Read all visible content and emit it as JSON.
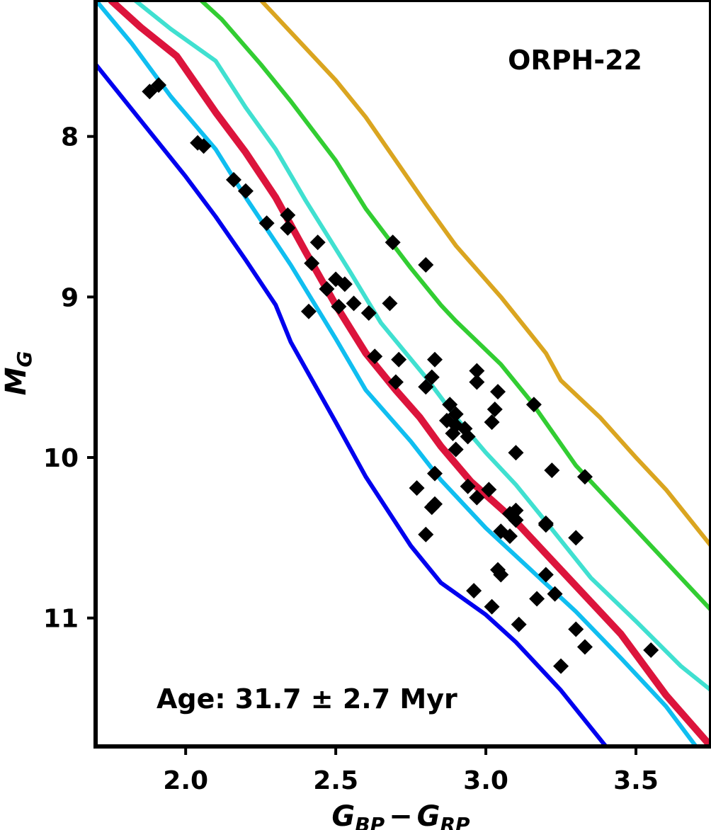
{
  "chart_data": {
    "type": "scatter",
    "title": "",
    "xlabel": {
      "main": "G",
      "sub": "BP",
      "minus": "−",
      "main2": "G",
      "sub2": "RP"
    },
    "ylabel": {
      "main": "M",
      "sub": "G"
    },
    "xlim": [
      1.7,
      3.75
    ],
    "ylim": [
      11.8,
      7.15
    ],
    "y_inverted": true,
    "xticks": [
      2.0,
      2.5,
      3.0,
      3.5
    ],
    "xtick_labels": [
      "2.0",
      "2.5",
      "3.0",
      "3.5"
    ],
    "yticks": [
      8,
      9,
      10,
      11
    ],
    "ytick_labels": [
      "8",
      "9",
      "10",
      "11"
    ],
    "annotations": {
      "cluster_name": "ORPH-22",
      "age_text": "Age: 31.7 ± 2.7 Myr"
    },
    "series": [
      {
        "name": "isochrone-blue",
        "type": "line",
        "color": "#0000ee",
        "width": 6,
        "points": [
          [
            1.7,
            7.55
          ],
          [
            1.85,
            7.9
          ],
          [
            2.0,
            8.25
          ],
          [
            2.1,
            8.5
          ],
          [
            2.2,
            8.77
          ],
          [
            2.3,
            9.05
          ],
          [
            2.35,
            9.28
          ],
          [
            2.5,
            9.78
          ],
          [
            2.6,
            10.12
          ],
          [
            2.75,
            10.55
          ],
          [
            2.85,
            10.78
          ],
          [
            3.0,
            10.98
          ],
          [
            3.1,
            11.15
          ],
          [
            3.25,
            11.45
          ],
          [
            3.4,
            11.8
          ]
        ]
      },
      {
        "name": "isochrone-deepskyblue",
        "type": "line",
        "color": "#10bef0",
        "width": 6,
        "points": [
          [
            1.7,
            7.15
          ],
          [
            1.82,
            7.42
          ],
          [
            1.95,
            7.75
          ],
          [
            2.1,
            8.08
          ],
          [
            2.2,
            8.38
          ],
          [
            2.35,
            8.8
          ],
          [
            2.5,
            9.26
          ],
          [
            2.6,
            9.58
          ],
          [
            2.75,
            9.9
          ],
          [
            2.85,
            10.14
          ],
          [
            3.0,
            10.44
          ],
          [
            3.15,
            10.7
          ],
          [
            3.3,
            10.96
          ],
          [
            3.45,
            11.25
          ],
          [
            3.6,
            11.55
          ],
          [
            3.7,
            11.8
          ]
        ]
      },
      {
        "name": "isochrone-crimson",
        "type": "line",
        "color": "#dc143c",
        "width": 10,
        "points": [
          [
            1.75,
            7.15
          ],
          [
            1.85,
            7.32
          ],
          [
            1.97,
            7.5
          ],
          [
            2.1,
            7.85
          ],
          [
            2.2,
            8.1
          ],
          [
            2.3,
            8.38
          ],
          [
            2.4,
            8.72
          ],
          [
            2.5,
            9.05
          ],
          [
            2.6,
            9.35
          ],
          [
            2.7,
            9.58
          ],
          [
            2.78,
            9.75
          ],
          [
            2.85,
            9.93
          ],
          [
            2.95,
            10.15
          ],
          [
            3.1,
            10.4
          ],
          [
            3.3,
            10.8
          ],
          [
            3.45,
            11.1
          ],
          [
            3.6,
            11.48
          ],
          [
            3.75,
            11.8
          ]
        ]
      },
      {
        "name": "isochrone-turquoise",
        "type": "line",
        "color": "#40e0d0",
        "width": 6,
        "points": [
          [
            1.83,
            7.15
          ],
          [
            1.95,
            7.33
          ],
          [
            2.1,
            7.53
          ],
          [
            2.2,
            7.82
          ],
          [
            2.3,
            8.08
          ],
          [
            2.4,
            8.4
          ],
          [
            2.55,
            8.85
          ],
          [
            2.65,
            9.16
          ],
          [
            2.8,
            9.5
          ],
          [
            2.9,
            9.75
          ],
          [
            3.0,
            9.97
          ],
          [
            3.1,
            10.17
          ],
          [
            3.2,
            10.4
          ],
          [
            3.35,
            10.75
          ],
          [
            3.5,
            11.02
          ],
          [
            3.65,
            11.3
          ],
          [
            3.75,
            11.45
          ]
        ]
      },
      {
        "name": "isochrone-limegreen",
        "type": "line",
        "color": "#32cd32",
        "width": 6,
        "points": [
          [
            2.05,
            7.15
          ],
          [
            2.12,
            7.27
          ],
          [
            2.25,
            7.55
          ],
          [
            2.35,
            7.78
          ],
          [
            2.5,
            8.15
          ],
          [
            2.6,
            8.45
          ],
          [
            2.75,
            8.82
          ],
          [
            2.85,
            9.05
          ],
          [
            2.9,
            9.15
          ],
          [
            3.05,
            9.42
          ],
          [
            3.15,
            9.65
          ],
          [
            3.3,
            10.05
          ],
          [
            3.45,
            10.35
          ],
          [
            3.6,
            10.65
          ],
          [
            3.75,
            10.95
          ]
        ]
      },
      {
        "name": "isochrone-goldenrod",
        "type": "line",
        "color": "#daa520",
        "width": 6,
        "points": [
          [
            2.25,
            7.15
          ],
          [
            2.35,
            7.35
          ],
          [
            2.5,
            7.65
          ],
          [
            2.6,
            7.88
          ],
          [
            2.7,
            8.15
          ],
          [
            2.8,
            8.42
          ],
          [
            2.9,
            8.68
          ],
          [
            3.05,
            9.0
          ],
          [
            3.2,
            9.35
          ],
          [
            3.25,
            9.52
          ],
          [
            3.38,
            9.75
          ],
          [
            3.5,
            10.0
          ],
          [
            3.6,
            10.2
          ],
          [
            3.75,
            10.55
          ]
        ]
      }
    ],
    "points_series": {
      "name": "stars",
      "type": "scatter",
      "marker": "diamond",
      "color": "#000000",
      "points": [
        [
          1.88,
          7.72
        ],
        [
          1.91,
          7.68
        ],
        [
          2.04,
          8.04
        ],
        [
          2.06,
          8.06
        ],
        [
          2.16,
          8.27
        ],
        [
          2.2,
          8.34
        ],
        [
          2.27,
          8.54
        ],
        [
          2.34,
          8.49
        ],
        [
          2.34,
          8.57
        ],
        [
          2.44,
          8.66
        ],
        [
          2.42,
          8.79
        ],
        [
          2.41,
          9.09
        ],
        [
          2.47,
          8.95
        ],
        [
          2.5,
          8.89
        ],
        [
          2.53,
          8.92
        ],
        [
          2.51,
          9.06
        ],
        [
          2.56,
          9.04
        ],
        [
          2.61,
          9.1
        ],
        [
          2.63,
          9.37
        ],
        [
          2.69,
          8.66
        ],
        [
          2.68,
          9.04
        ],
        [
          2.71,
          9.39
        ],
        [
          2.7,
          9.53
        ],
        [
          2.8,
          8.8
        ],
        [
          2.83,
          9.39
        ],
        [
          2.8,
          9.56
        ],
        [
          2.82,
          9.5
        ],
        [
          2.88,
          9.67
        ],
        [
          2.9,
          9.73
        ],
        [
          2.87,
          9.77
        ],
        [
          2.9,
          9.8
        ],
        [
          2.89,
          9.85
        ],
        [
          2.93,
          9.82
        ],
        [
          2.94,
          9.87
        ],
        [
          2.9,
          9.95
        ],
        [
          2.97,
          9.46
        ],
        [
          2.97,
          9.53
        ],
        [
          3.04,
          9.59
        ],
        [
          3.03,
          9.7
        ],
        [
          3.02,
          9.78
        ],
        [
          3.1,
          9.97
        ],
        [
          3.16,
          9.67
        ],
        [
          3.22,
          10.08
        ],
        [
          3.33,
          10.12
        ],
        [
          2.83,
          10.1
        ],
        [
          2.77,
          10.19
        ],
        [
          2.83,
          10.29
        ],
        [
          2.82,
          10.31
        ],
        [
          2.94,
          10.18
        ],
        [
          2.97,
          10.25
        ],
        [
          3.01,
          10.2
        ],
        [
          3.08,
          10.35
        ],
        [
          3.1,
          10.33
        ],
        [
          3.1,
          10.39
        ],
        [
          3.05,
          10.46
        ],
        [
          3.08,
          10.49
        ],
        [
          3.2,
          10.42
        ],
        [
          3.2,
          10.41
        ],
        [
          3.3,
          10.5
        ],
        [
          2.8,
          10.48
        ],
        [
          3.04,
          10.7
        ],
        [
          3.05,
          10.73
        ],
        [
          3.2,
          10.73
        ],
        [
          3.23,
          10.85
        ],
        [
          3.17,
          10.88
        ],
        [
          2.96,
          10.83
        ],
        [
          3.02,
          10.93
        ],
        [
          3.11,
          11.04
        ],
        [
          3.3,
          11.07
        ],
        [
          3.33,
          11.18
        ],
        [
          3.25,
          11.3
        ],
        [
          3.55,
          11.2
        ]
      ]
    }
  }
}
